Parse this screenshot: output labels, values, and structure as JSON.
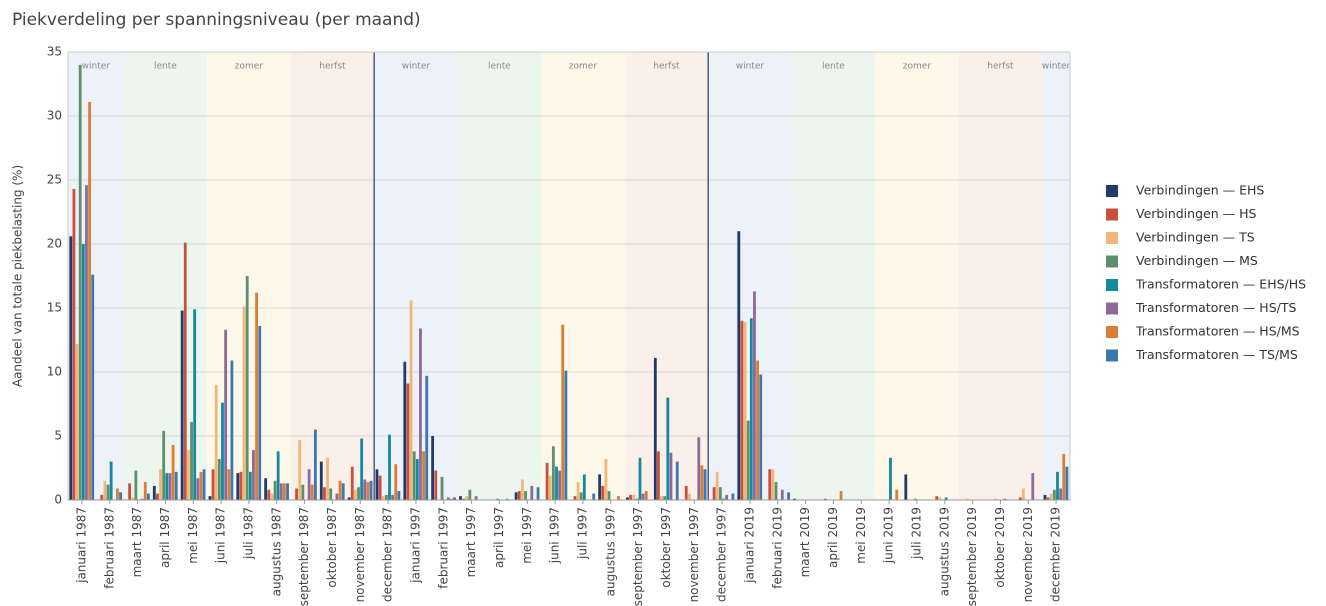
{
  "chart_data": {
    "type": "bar",
    "title": "Piekverdeling per spanningsniveau (per maand)",
    "y_label": "Aandeel van totale piekbelasting (%)",
    "categories": [
      "januari 1987",
      "februari 1987",
      "maart 1987",
      "april 1987",
      "mei 1987",
      "juni 1987",
      "juli 1987",
      "augustus 1987",
      "september 1987",
      "oktober 1987",
      "november 1987",
      "december 1987",
      "januari 1997",
      "februari 1997",
      "maart 1997",
      "april 1997",
      "mei 1997",
      "juni 1997",
      "juli 1997",
      "augustus 1997",
      "september 1997",
      "oktober 1997",
      "november 1997",
      "december 1997",
      "januari 2019",
      "februari 2019",
      "maart 2019",
      "april 2019",
      "mei 2019",
      "juni 2019",
      "juli 2019",
      "augustus 2019",
      "september 2019",
      "oktober 2019",
      "november 2019",
      "december 2019"
    ],
    "ylim": [
      0,
      35
    ],
    "yticks": [
      0,
      5,
      10,
      15,
      20,
      25,
      30,
      35
    ],
    "grid": true,
    "legend": "right",
    "seasons": [
      {
        "label": "winter",
        "from": "januari 1987",
        "to": "februari 1987",
        "color": "#edf2f8"
      },
      {
        "label": "lente",
        "from": "maart 1987",
        "to": "mei 1987",
        "color": "#edf6ee"
      },
      {
        "label": "zomer",
        "from": "juni 1987",
        "to": "augustus 1987",
        "color": "#fdf8e9"
      },
      {
        "label": "herfst",
        "from": "september 1987",
        "to": "november 1987",
        "color": "#fbefea"
      },
      {
        "label": "winter",
        "from": "december 1987",
        "to": "februari 1997",
        "color": "#edf2f8"
      },
      {
        "label": "lente",
        "from": "maart 1997",
        "to": "mei 1997",
        "color": "#edf6ee"
      },
      {
        "label": "zomer",
        "from": "juni 1997",
        "to": "augustus 1997",
        "color": "#fdf8e9"
      },
      {
        "label": "herfst",
        "from": "september 1997",
        "to": "november 1997",
        "color": "#fbefea"
      },
      {
        "label": "winter",
        "from": "december 1997",
        "to": "februari 2019",
        "color": "#edf2f8"
      },
      {
        "label": "lente",
        "from": "maart 2019",
        "to": "mei 2019",
        "color": "#edf6ee"
      },
      {
        "label": "zomer",
        "from": "juni 2019",
        "to": "augustus 2019",
        "color": "#fdf8e9"
      },
      {
        "label": "herfst",
        "from": "september 2019",
        "to": "november 2019",
        "color": "#fbefea"
      },
      {
        "label": "winter",
        "from": "december 2019",
        "to": "december 2019",
        "color": "#edf2f8"
      }
    ],
    "year_separators": [
      "december 1987",
      "december 1997"
    ],
    "series": [
      {
        "name": "Verbindingen — EHS",
        "color": "#1f3a6b",
        "values": [
          20.6,
          0,
          0,
          1.1,
          14.8,
          0.3,
          2.1,
          1.7,
          0,
          3.0,
          0.2,
          2.4,
          10.8,
          5.0,
          0.3,
          0,
          0.6,
          0,
          0,
          2.0,
          0.2,
          11.1,
          0,
          0,
          21.0,
          0,
          0.1,
          0,
          0,
          0,
          2.0,
          0,
          0,
          0,
          0,
          0.4
        ]
      },
      {
        "name": "Verbindingen — HS",
        "color": "#c9503c",
        "values": [
          24.3,
          0.4,
          1.3,
          0.5,
          20.1,
          2.4,
          2.2,
          0.8,
          0.9,
          1.0,
          2.6,
          1.9,
          9.1,
          2.3,
          0.1,
          0,
          0.7,
          2.9,
          0.3,
          1.1,
          0.4,
          3.8,
          1.1,
          1.0,
          14.0,
          2.4,
          0,
          0.1,
          0,
          0,
          0,
          0.3,
          0,
          0,
          0.2,
          0.2
        ]
      },
      {
        "name": "Verbindingen — TS",
        "color": "#f0b878",
        "values": [
          12.2,
          1.5,
          0.2,
          2.4,
          3.9,
          9.0,
          15.1,
          0.5,
          4.7,
          3.3,
          0.8,
          0.3,
          15.6,
          0,
          0.3,
          0,
          1.6,
          1.9,
          1.4,
          3.2,
          0.4,
          0.3,
          0.5,
          2.2,
          13.9,
          2.4,
          0,
          0,
          0,
          0,
          0,
          0.2,
          0.1,
          0.1,
          0.9,
          0.5
        ]
      },
      {
        "name": "Verbindingen — MS",
        "color": "#5e8f6e",
        "values": [
          34,
          1.2,
          2.3,
          5.4,
          6.1,
          3.2,
          17.5,
          1.5,
          1.2,
          0.9,
          1.0,
          0.4,
          3.8,
          1.8,
          0.8,
          0.1,
          0.7,
          4.2,
          0.6,
          0.7,
          0.1,
          0.3,
          0,
          1.0,
          6.2,
          1.4,
          0,
          0,
          0,
          0,
          0.1,
          0,
          0,
          0,
          0,
          0.8
        ]
      },
      {
        "name": "Transformatoren — EHS/HS",
        "color": "#138a9e",
        "values": [
          20,
          3.0,
          0,
          2.1,
          14.9,
          7.6,
          2.2,
          3.8,
          0,
          0,
          4.8,
          5.1,
          3.2,
          0,
          0,
          0,
          0,
          2.6,
          2.0,
          0,
          3.3,
          8.0,
          0,
          0.1,
          14.2,
          0,
          0,
          0,
          0,
          3.3,
          0,
          0.2,
          0,
          0,
          0,
          2.2
        ]
      },
      {
        "name": "Transformatoren — HS/TS",
        "color": "#8e6a9a",
        "values": [
          24.6,
          0,
          0.1,
          2.1,
          1.7,
          13.3,
          3.9,
          1.3,
          2.4,
          0.5,
          1.6,
          0.4,
          13.4,
          0.2,
          0.3,
          0,
          1.1,
          2.3,
          0,
          0,
          0.5,
          3.7,
          4.9,
          0.4,
          16.3,
          0.8,
          0,
          0,
          0,
          0,
          0,
          0,
          0,
          0.1,
          2.1,
          0.9
        ]
      },
      {
        "name": "Transformatoren — HS/MS",
        "color": "#d97f35",
        "values": [
          31.1,
          0.9,
          1.4,
          4.3,
          2.2,
          2.4,
          16.2,
          1.3,
          1.2,
          1.5,
          1.4,
          2.8,
          3.8,
          0.1,
          0,
          0.1,
          0,
          13.7,
          0,
          0.3,
          0.7,
          0,
          2.7,
          0,
          10.9,
          0,
          0,
          0.7,
          0,
          0.8,
          0,
          0,
          0,
          0,
          0,
          3.6
        ]
      },
      {
        "name": "Transformatoren — TS/MS",
        "color": "#3b78b0",
        "values": [
          17.6,
          0.6,
          0.5,
          2.2,
          2.4,
          10.9,
          13.6,
          1.3,
          5.5,
          1.3,
          1.5,
          0.7,
          9.7,
          0.2,
          0,
          0,
          1.0,
          10.1,
          0.5,
          0,
          0,
          3.0,
          2.4,
          0.5,
          9.8,
          0.6,
          0,
          0,
          0,
          0,
          0,
          0,
          0,
          0,
          0,
          2.6
        ]
      }
    ]
  }
}
